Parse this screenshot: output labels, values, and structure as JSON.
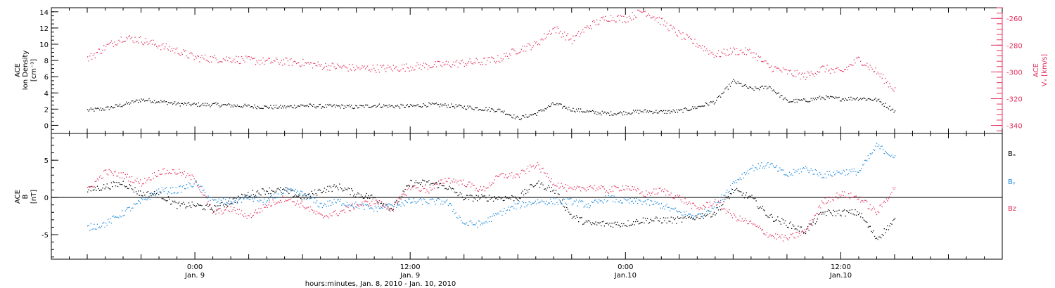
{
  "chart_data": [
    {
      "type": "scatter",
      "panel": "top",
      "left_axis": {
        "label_lines": [
          "ACE",
          "Ion Density",
          "[cm⁻³]"
        ],
        "ylim": [
          -1,
          14.5
        ],
        "ticks": [
          0,
          2,
          4,
          6,
          8,
          10,
          12,
          14
        ]
      },
      "right_axis": {
        "label_lines": [
          "ACE",
          "Vₓ [km/s]"
        ],
        "ylim": [
          -346,
          -252
        ],
        "ticks": [
          -340,
          -320,
          -300,
          -280,
          -260
        ],
        "color": "#e3325f"
      },
      "series": [
        {
          "axis": "left",
          "color": "#000000",
          "x": [
            -6,
            -5,
            -4,
            -3,
            -2,
            -1,
            0,
            1,
            2,
            3,
            4,
            5,
            6,
            7,
            8,
            9,
            10,
            11,
            12,
            13,
            14,
            15,
            16,
            17,
            18,
            19,
            20,
            21,
            22,
            23,
            24,
            25,
            26,
            27,
            28,
            29,
            30,
            31,
            32,
            33,
            34,
            35,
            36,
            37,
            38,
            39
          ],
          "y": [
            1.9,
            2.1,
            2.6,
            3.2,
            3.0,
            2.7,
            2.6,
            2.6,
            2.5,
            2.4,
            2.3,
            2.3,
            2.5,
            2.4,
            2.4,
            2.3,
            2.5,
            2.4,
            2.4,
            2.6,
            2.5,
            2.3,
            2.1,
            1.9,
            0.9,
            1.5,
            2.7,
            2.0,
            1.7,
            1.5,
            1.6,
            1.8,
            1.7,
            1.8,
            2.3,
            3.0,
            5.5,
            4.5,
            4.8,
            3.0,
            3.1,
            3.5,
            3.3,
            3.4,
            3.2,
            1.8
          ]
        },
        {
          "axis": "right",
          "color": "#e3325f",
          "x": [
            -6,
            -5,
            -4,
            -3,
            -2,
            -1,
            0,
            1,
            2,
            3,
            4,
            5,
            6,
            7,
            8,
            9,
            10,
            11,
            12,
            13,
            14,
            15,
            16,
            17,
            18,
            19,
            20,
            21,
            22,
            23,
            24,
            25,
            26,
            27,
            28,
            29,
            30,
            31,
            32,
            33,
            34,
            35,
            36,
            37,
            38,
            39
          ],
          "y": [
            -290,
            -281,
            -274,
            -276,
            -280,
            -284,
            -289,
            -290,
            -290,
            -291,
            -292,
            -292,
            -293,
            -295,
            -296,
            -297,
            -297,
            -297,
            -296,
            -295,
            -294,
            -293,
            -292,
            -290,
            -283,
            -279,
            -267,
            -276,
            -265,
            -259,
            -260,
            -254,
            -262,
            -272,
            -279,
            -287,
            -284,
            -285,
            -296,
            -300,
            -303,
            -297,
            -300,
            -290,
            -300,
            -313
          ]
        }
      ]
    },
    {
      "type": "scatter",
      "panel": "bottom",
      "left_axis": {
        "label_lines": [
          "ACE",
          "B",
          "[nT]"
        ],
        "ylim": [
          -8.3,
          8.6
        ],
        "ticks": [
          -5,
          0,
          5
        ]
      },
      "zero_line": true,
      "legend": {
        "placement": "right",
        "entries": [
          {
            "label": "Bₓ",
            "color": "#000000"
          },
          {
            "label": "Bᵧ",
            "color": "#1a88dc"
          },
          {
            "label": "Bz",
            "color": "#e3325f"
          }
        ]
      },
      "series": [
        {
          "name": "Bₓ",
          "color": "#000000",
          "x": [
            -6,
            -5,
            -4,
            -3,
            -2,
            -1,
            0,
            1,
            2,
            3,
            4,
            5,
            6,
            7,
            8,
            9,
            10,
            11,
            12,
            13,
            14,
            15,
            16,
            17,
            18,
            19,
            20,
            21,
            22,
            23,
            24,
            25,
            26,
            27,
            28,
            29,
            30,
            31,
            32,
            33,
            34,
            35,
            36,
            37,
            38,
            39
          ],
          "y": [
            1.0,
            1.5,
            2.0,
            0.5,
            0.5,
            -1.0,
            -1.0,
            -1.5,
            -0.5,
            0.5,
            1.0,
            1.0,
            0.0,
            1.0,
            1.5,
            0.5,
            0.0,
            -1.5,
            2.0,
            2.0,
            1.5,
            0.0,
            0.0,
            0.0,
            0.0,
            2.0,
            1.0,
            -2.5,
            -3.5,
            -3.5,
            -3.5,
            -3.0,
            -3.0,
            -3.0,
            -2.5,
            -2.0,
            1.0,
            0.0,
            -2.5,
            -3.5,
            -4.5,
            -2.0,
            -2.0,
            -2.0,
            -5.5,
            -3.0
          ]
        },
        {
          "name": "Bᵧ",
          "color": "#1a88dc",
          "x": [
            -6,
            -5,
            -4,
            -3,
            -2,
            -1,
            0,
            1,
            2,
            3,
            4,
            5,
            6,
            7,
            8,
            9,
            10,
            11,
            12,
            13,
            14,
            15,
            16,
            17,
            18,
            19,
            20,
            21,
            22,
            23,
            24,
            25,
            26,
            27,
            28,
            29,
            30,
            31,
            32,
            33,
            34,
            35,
            36,
            37,
            38,
            39
          ],
          "y": [
            -4.0,
            -3.5,
            -2.0,
            -0.5,
            1.0,
            1.0,
            2.0,
            -0.5,
            -0.5,
            0.0,
            -0.5,
            1.0,
            0.5,
            -1.0,
            -0.5,
            -1.0,
            -1.5,
            -1.0,
            -0.5,
            -0.5,
            -0.5,
            -3.5,
            -3.5,
            -2.0,
            -1.0,
            -0.5,
            -0.5,
            -0.5,
            -1.0,
            0.0,
            -0.5,
            -0.5,
            -1.0,
            -2.0,
            -2.5,
            -1.0,
            2.0,
            4.0,
            4.5,
            3.0,
            4.0,
            3.0,
            3.5,
            3.5,
            7.0,
            5.5
          ]
        },
        {
          "name": "Bz",
          "color": "#e3325f",
          "x": [
            -6,
            -5,
            -4,
            -3,
            -2,
            -1,
            0,
            1,
            2,
            3,
            4,
            5,
            6,
            7,
            8,
            9,
            10,
            11,
            12,
            13,
            14,
            15,
            16,
            17,
            18,
            19,
            20,
            21,
            22,
            23,
            24,
            25,
            26,
            27,
            28,
            29,
            30,
            31,
            32,
            33,
            34,
            35,
            36,
            37,
            38,
            39
          ],
          "y": [
            1.0,
            3.5,
            3.0,
            2.0,
            3.5,
            3.5,
            2.5,
            -2.0,
            -1.5,
            -2.5,
            -1.0,
            0.0,
            -1.0,
            -2.5,
            -2.0,
            -1.0,
            -0.5,
            -1.5,
            1.5,
            1.0,
            2.5,
            2.0,
            1.0,
            3.0,
            3.0,
            4.5,
            2.0,
            1.0,
            1.5,
            1.0,
            1.5,
            0.5,
            1.0,
            0.0,
            -1.5,
            -0.5,
            -2.5,
            -3.5,
            -5.0,
            -5.5,
            -4.5,
            -0.5,
            0.5,
            0.0,
            -2.0,
            1.5
          ]
        }
      ]
    }
  ],
  "x_axis": {
    "range": [
      -8,
      45
    ],
    "major_ticks": [
      {
        "x": 0,
        "label": "0:00",
        "date": "Jan. 9"
      },
      {
        "x": 12,
        "label": "12:00",
        "date": "Jan. 9"
      },
      {
        "x": 24,
        "label": "0:00",
        "date": "Jan.10"
      },
      {
        "x": 36,
        "label": "12:00",
        "date": "Jan.10"
      }
    ],
    "title": "hours:minutes, Jan. 8, 2010 - Jan. 10, 2010"
  }
}
